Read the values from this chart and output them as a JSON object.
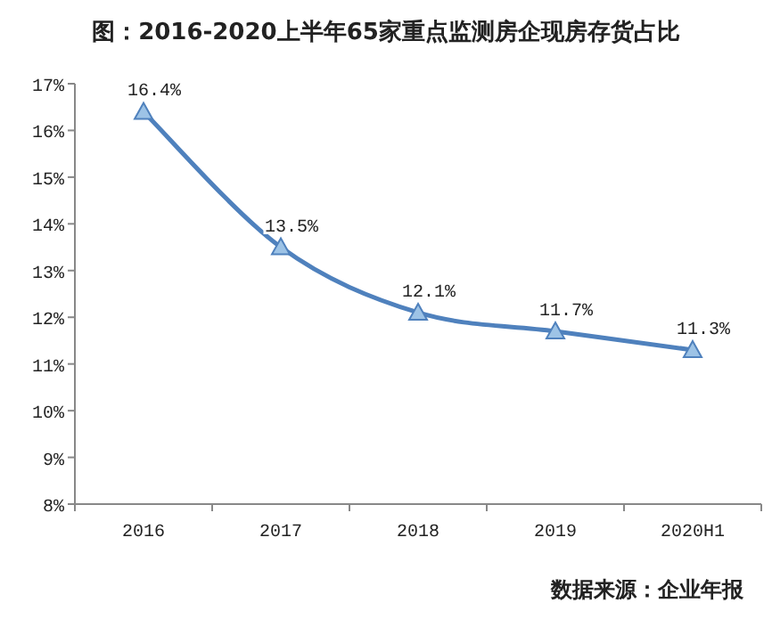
{
  "chart_data": {
    "type": "line",
    "title": "图：2016-2020上半年65家重点监测房企现房存货占比",
    "categories": [
      "2016",
      "2017",
      "2018",
      "2019",
      "2020H1"
    ],
    "series": [
      {
        "color": "#4f81bd",
        "values": [
          16.4,
          13.5,
          12.1,
          11.7,
          11.3
        ],
        "value_labels": [
          "16.4%",
          "13.5%",
          "12.1%",
          "11.7%",
          "11.3%"
        ]
      }
    ],
    "ylim": [
      8,
      17
    ],
    "yticks": [
      {
        "value": 8,
        "label": "8%"
      },
      {
        "value": 9,
        "label": "9%"
      },
      {
        "value": 10,
        "label": "10%"
      },
      {
        "value": 11,
        "label": "11%"
      },
      {
        "value": 12,
        "label": "12%"
      },
      {
        "value": 13,
        "label": "13%"
      },
      {
        "value": 14,
        "label": "14%"
      },
      {
        "value": 15,
        "label": "15%"
      },
      {
        "value": 16,
        "label": "16%"
      },
      {
        "value": 17,
        "label": "17%"
      }
    ],
    "marker": "triangle",
    "grid": false,
    "annotations": [
      "数据来源：企业年报"
    ]
  }
}
